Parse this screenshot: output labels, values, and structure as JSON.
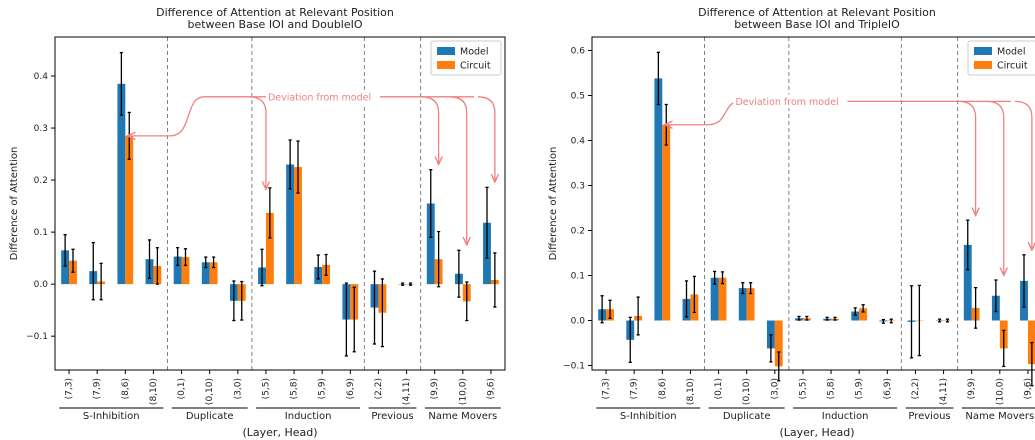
{
  "colors": {
    "model": "#1f77b4",
    "circuit": "#ff7f0e",
    "annotation": "#f08080",
    "error": "#000000",
    "separator": "#808080"
  },
  "chart_data": [
    {
      "type": "bar",
      "title": "Difference of Attention at Relevant Position",
      "subtitle": "between Base IOI and DoubleIO",
      "xlabel": "(Layer, Head)",
      "ylabel": "Difference of Attention",
      "ylim": [
        -0.165,
        0.475
      ],
      "yticks": [
        -0.1,
        0.0,
        0.1,
        0.2,
        0.3,
        0.4
      ],
      "ytick_labels": [
        "−0.1",
        "0.0",
        "0.1",
        "0.2",
        "0.3",
        "0.4"
      ],
      "legend_position": "top-right",
      "categories": [
        "(7,3)",
        "(7,9)",
        "(8,6)",
        "(8,10)",
        "(0,1)",
        "(0,10)",
        "(3,0)",
        "(5,5)",
        "(5,8)",
        "(5,9)",
        "(6,9)",
        "(2,2)",
        "(4,11)",
        "(9,9)",
        "(10,0)",
        "(9,6)"
      ],
      "groups": [
        {
          "name": "S-Inhibition",
          "start": 0,
          "end": 3
        },
        {
          "name": "Duplicate",
          "start": 4,
          "end": 6
        },
        {
          "name": "Induction",
          "start": 7,
          "end": 10
        },
        {
          "name": "Previous",
          "start": 11,
          "end": 12
        },
        {
          "name": "Name Movers",
          "start": 13,
          "end": 15
        }
      ],
      "series": [
        {
          "name": "Model",
          "values": [
            0.065,
            0.025,
            0.385,
            0.048,
            0.053,
            0.042,
            -0.032,
            0.032,
            0.23,
            0.033,
            -0.068,
            -0.045,
            0.0,
            0.155,
            0.02,
            0.118
          ],
          "errors": [
            0.03,
            0.055,
            0.06,
            0.037,
            0.017,
            0.01,
            0.038,
            0.035,
            0.047,
            0.023,
            0.07,
            0.07,
            0.002,
            0.065,
            0.045,
            0.068
          ]
        },
        {
          "name": "Circuit",
          "values": [
            0.045,
            0.005,
            0.285,
            0.035,
            0.052,
            0.042,
            -0.032,
            0.137,
            0.225,
            0.037,
            -0.068,
            -0.055,
            0.0,
            0.048,
            -0.033,
            0.008
          ],
          "errors": [
            0.022,
            0.035,
            0.045,
            0.035,
            0.016,
            0.01,
            0.037,
            0.048,
            0.05,
            0.02,
            0.062,
            0.065,
            0.002,
            0.053,
            0.037,
            0.052
          ]
        }
      ],
      "annotation": {
        "text": "Deviation from model",
        "anchor_y": 0.36,
        "targets": [
          2,
          7,
          13,
          14,
          15
        ]
      }
    },
    {
      "type": "bar",
      "title": "Difference of Attention at Relevant Position",
      "subtitle": "between Base IOI and TripleIO",
      "xlabel": "(Layer, Head)",
      "ylabel": "Difference of Attention",
      "ylim": [
        -0.11,
        0.63
      ],
      "yticks": [
        -0.1,
        0.0,
        0.1,
        0.2,
        0.3,
        0.4,
        0.5,
        0.6
      ],
      "ytick_labels": [
        "−0.1",
        "0.0",
        "0.1",
        "0.2",
        "0.3",
        "0.4",
        "0.5",
        "0.6"
      ],
      "legend_position": "top-right",
      "categories": [
        "(7,3)",
        "(7,9)",
        "(8,6)",
        "(8,10)",
        "(0,1)",
        "(0,10)",
        "(3,0)",
        "(5,5)",
        "(5,8)",
        "(5,9)",
        "(6,9)",
        "(2,2)",
        "(4,11)",
        "(9,9)",
        "(10,0)",
        "(9,6)"
      ],
      "groups": [
        {
          "name": "S-Inhibition",
          "start": 0,
          "end": 3
        },
        {
          "name": "Duplicate",
          "start": 4,
          "end": 6
        },
        {
          "name": "Induction",
          "start": 7,
          "end": 10
        },
        {
          "name": "Previous",
          "start": 11,
          "end": 12
        },
        {
          "name": "Name Movers",
          "start": 13,
          "end": 15
        }
      ],
      "series": [
        {
          "name": "Model",
          "values": [
            0.025,
            -0.043,
            0.538,
            0.048,
            0.095,
            0.072,
            -0.062,
            0.005,
            0.004,
            0.02,
            -0.002,
            -0.003,
            0.0,
            0.168,
            0.055,
            0.088
          ],
          "errors": [
            0.03,
            0.05,
            0.058,
            0.04,
            0.014,
            0.012,
            0.03,
            0.004,
            0.003,
            0.008,
            0.004,
            0.08,
            0.003,
            0.055,
            0.035,
            0.058
          ]
        },
        {
          "name": "Circuit",
          "values": [
            0.025,
            0.01,
            0.435,
            0.058,
            0.095,
            0.072,
            -0.102,
            0.005,
            0.004,
            0.027,
            -0.001,
            0.0,
            0.0,
            0.028,
            -0.062,
            -0.097
          ],
          "errors": [
            0.02,
            0.042,
            0.045,
            0.04,
            0.013,
            0.012,
            0.032,
            0.004,
            0.003,
            0.008,
            0.004,
            0.078,
            0.003,
            0.045,
            0.04,
            0.048
          ]
        }
      ],
      "annotation": {
        "text": "Deviation from model",
        "anchor_y": 0.487,
        "targets": [
          2,
          13,
          14,
          15
        ]
      }
    }
  ]
}
